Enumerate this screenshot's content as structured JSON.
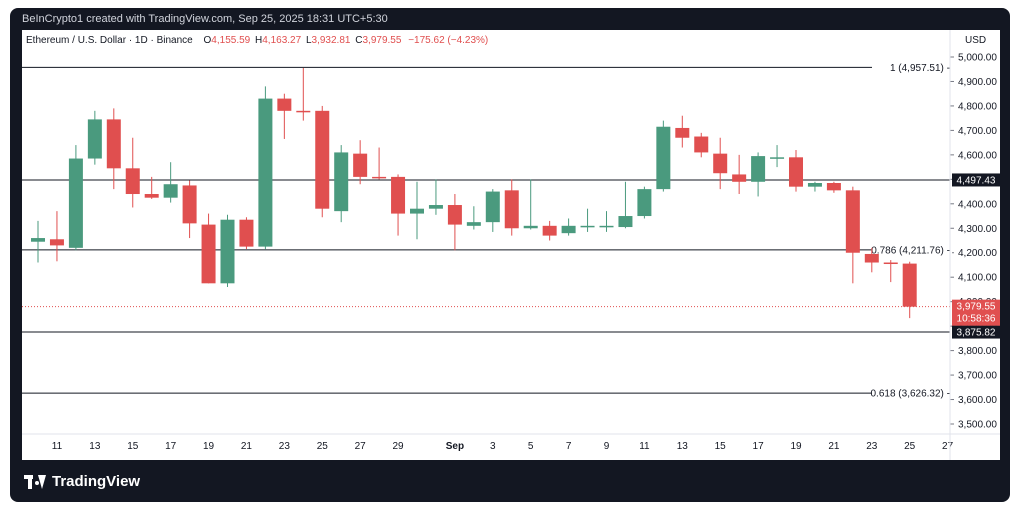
{
  "header": {
    "creator_line": "BeInCrypto1 created with TradingView.com, Sep 25, 2025 18:31 UTC+5:30"
  },
  "legend": {
    "symbol": "Ethereum / U.S. Dollar · 1D · Binance",
    "o_key": "O",
    "o_val": "4,155.59",
    "h_key": "H",
    "h_val": "4,163.27",
    "l_key": "L",
    "l_val": "3,932.81",
    "c_key": "C",
    "c_val": "3,979.55",
    "change": "−175.62 (−4.23%)"
  },
  "currency_label": "USD",
  "brand": {
    "name": "TradingView",
    "logo_icon": "tradingview-logo-icon"
  },
  "colors": {
    "up": "#4a9a7e",
    "down": "#e04f4f",
    "line": "#131722",
    "price_label_bg": "#e04f4f"
  },
  "chart_data": {
    "type": "candlestick",
    "title": "Ethereum / U.S. Dollar · 1D · Binance",
    "ylabel": "USD",
    "ylim": [
      3400,
      5100
    ],
    "y_ticks": [
      3500,
      3600,
      3700,
      3800,
      3900,
      4000,
      4100,
      4200,
      4300,
      4400,
      4500,
      4600,
      4700,
      4800,
      4900,
      5000
    ],
    "y_tick_labels": [
      "3,500.00",
      "3,600.00",
      "3,700.00",
      "3,800.00",
      "3,900.00",
      "4,000.00",
      "4,100.00",
      "4,200.00",
      "4,300.00",
      "4,400.00",
      "4,500.00",
      "4,600.00",
      "4,700.00",
      "4,800.00",
      "4,900.00",
      "5,000.00"
    ],
    "x_ticks": [
      {
        "i": 1,
        "label": "11"
      },
      {
        "i": 3,
        "label": "13"
      },
      {
        "i": 5,
        "label": "15"
      },
      {
        "i": 7,
        "label": "17"
      },
      {
        "i": 9,
        "label": "19"
      },
      {
        "i": 11,
        "label": "21"
      },
      {
        "i": 13,
        "label": "23"
      },
      {
        "i": 15,
        "label": "25"
      },
      {
        "i": 17,
        "label": "27"
      },
      {
        "i": 19,
        "label": "29"
      },
      {
        "i": 22,
        "label": "Sep"
      },
      {
        "i": 24,
        "label": "3"
      },
      {
        "i": 26,
        "label": "5"
      },
      {
        "i": 28,
        "label": "7"
      },
      {
        "i": 30,
        "label": "9"
      },
      {
        "i": 32,
        "label": "11"
      },
      {
        "i": 34,
        "label": "13"
      },
      {
        "i": 36,
        "label": "15"
      },
      {
        "i": 38,
        "label": "17"
      },
      {
        "i": 40,
        "label": "19"
      },
      {
        "i": 42,
        "label": "21"
      },
      {
        "i": 44,
        "label": "23"
      },
      {
        "i": 46,
        "label": "25"
      },
      {
        "i": 48,
        "label": "27"
      }
    ],
    "n_slots": 49,
    "candles": [
      {
        "i": 0,
        "o": 4245,
        "h": 4330,
        "l": 4160,
        "c": 4260
      },
      {
        "i": 1,
        "o": 4255,
        "h": 4370,
        "l": 4165,
        "c": 4230
      },
      {
        "i": 2,
        "o": 4220,
        "h": 4640,
        "l": 4210,
        "c": 4585
      },
      {
        "i": 3,
        "o": 4585,
        "h": 4780,
        "l": 4560,
        "c": 4745
      },
      {
        "i": 4,
        "o": 4745,
        "h": 4790,
        "l": 4460,
        "c": 4545
      },
      {
        "i": 5,
        "o": 4545,
        "h": 4670,
        "l": 4385,
        "c": 4440
      },
      {
        "i": 6,
        "o": 4440,
        "h": 4510,
        "l": 4420,
        "c": 4425
      },
      {
        "i": 7,
        "o": 4425,
        "h": 4570,
        "l": 4405,
        "c": 4480
      },
      {
        "i": 8,
        "o": 4475,
        "h": 4495,
        "l": 4260,
        "c": 4320
      },
      {
        "i": 9,
        "o": 4315,
        "h": 4360,
        "l": 4075,
        "c": 4075
      },
      {
        "i": 10,
        "o": 4075,
        "h": 4355,
        "l": 4060,
        "c": 4335
      },
      {
        "i": 11,
        "o": 4335,
        "h": 4345,
        "l": 4215,
        "c": 4225
      },
      {
        "i": 12,
        "o": 4225,
        "h": 4880,
        "l": 4215,
        "c": 4830
      },
      {
        "i": 13,
        "o": 4830,
        "h": 4850,
        "l": 4665,
        "c": 4780
      },
      {
        "i": 14,
        "o": 4780,
        "h": 4955,
        "l": 4740,
        "c": 4775
      },
      {
        "i": 15,
        "o": 4780,
        "h": 4800,
        "l": 4345,
        "c": 4380
      },
      {
        "i": 16,
        "o": 4370,
        "h": 4640,
        "l": 4325,
        "c": 4610
      },
      {
        "i": 17,
        "o": 4605,
        "h": 4660,
        "l": 4480,
        "c": 4510
      },
      {
        "i": 18,
        "o": 4510,
        "h": 4630,
        "l": 4500,
        "c": 4505
      },
      {
        "i": 19,
        "o": 4510,
        "h": 4520,
        "l": 4270,
        "c": 4360
      },
      {
        "i": 20,
        "o": 4360,
        "h": 4490,
        "l": 4255,
        "c": 4380
      },
      {
        "i": 21,
        "o": 4380,
        "h": 4500,
        "l": 4355,
        "c": 4395
      },
      {
        "i": 22,
        "o": 4395,
        "h": 4440,
        "l": 4210,
        "c": 4315
      },
      {
        "i": 23,
        "o": 4310,
        "h": 4390,
        "l": 4295,
        "c": 4325
      },
      {
        "i": 24,
        "o": 4325,
        "h": 4460,
        "l": 4285,
        "c": 4450
      },
      {
        "i": 25,
        "o": 4455,
        "h": 4500,
        "l": 4270,
        "c": 4300
      },
      {
        "i": 26,
        "o": 4300,
        "h": 4500,
        "l": 4295,
        "c": 4310
      },
      {
        "i": 27,
        "o": 4310,
        "h": 4330,
        "l": 4250,
        "c": 4270
      },
      {
        "i": 28,
        "o": 4280,
        "h": 4340,
        "l": 4270,
        "c": 4310
      },
      {
        "i": 29,
        "o": 4310,
        "h": 4380,
        "l": 4285,
        "c": 4310
      },
      {
        "i": 30,
        "o": 4305,
        "h": 4370,
        "l": 4285,
        "c": 4310
      },
      {
        "i": 31,
        "o": 4305,
        "h": 4490,
        "l": 4300,
        "c": 4350
      },
      {
        "i": 32,
        "o": 4350,
        "h": 4470,
        "l": 4340,
        "c": 4460
      },
      {
        "i": 33,
        "o": 4460,
        "h": 4740,
        "l": 4450,
        "c": 4715
      },
      {
        "i": 34,
        "o": 4710,
        "h": 4760,
        "l": 4630,
        "c": 4670
      },
      {
        "i": 35,
        "o": 4675,
        "h": 4690,
        "l": 4590,
        "c": 4610
      },
      {
        "i": 36,
        "o": 4605,
        "h": 4670,
        "l": 4460,
        "c": 4525
      },
      {
        "i": 37,
        "o": 4520,
        "h": 4600,
        "l": 4440,
        "c": 4490
      },
      {
        "i": 38,
        "o": 4490,
        "h": 4610,
        "l": 4430,
        "c": 4595
      },
      {
        "i": 39,
        "o": 4590,
        "h": 4640,
        "l": 4550,
        "c": 4590
      },
      {
        "i": 40,
        "o": 4590,
        "h": 4620,
        "l": 4450,
        "c": 4470
      },
      {
        "i": 41,
        "o": 4470,
        "h": 4490,
        "l": 4450,
        "c": 4485
      },
      {
        "i": 42,
        "o": 4485,
        "h": 4490,
        "l": 4445,
        "c": 4455
      },
      {
        "i": 43,
        "o": 4455,
        "h": 4470,
        "l": 4075,
        "c": 4200
      },
      {
        "i": 44,
        "o": 4195,
        "h": 4220,
        "l": 4120,
        "c": 4160
      },
      {
        "i": 45,
        "o": 4160,
        "h": 4170,
        "l": 4080,
        "c": 4155
      },
      {
        "i": 46,
        "o": 4155.59,
        "h": 4163.27,
        "l": 3932.81,
        "c": 3979.55
      }
    ],
    "horizontal_lines": [
      {
        "price": 4957.51,
        "label": "1 (4,957.51) -"
      },
      {
        "price": 4497.43,
        "label": ""
      },
      {
        "price": 4211.76,
        "label": "0.786 (4,211.76) -"
      },
      {
        "price": 3875.82,
        "label": ""
      },
      {
        "price": 3626.32,
        "label": "0.618 (3,626.32) -"
      }
    ],
    "axis_price_tags": [
      {
        "price": 4497.43,
        "label": "4,497.43"
      },
      {
        "price": 3875.82,
        "label": "3,875.82"
      }
    ],
    "current_price": {
      "price": 3979.55,
      "label": "3,979.55",
      "countdown": "10:58:36"
    }
  }
}
